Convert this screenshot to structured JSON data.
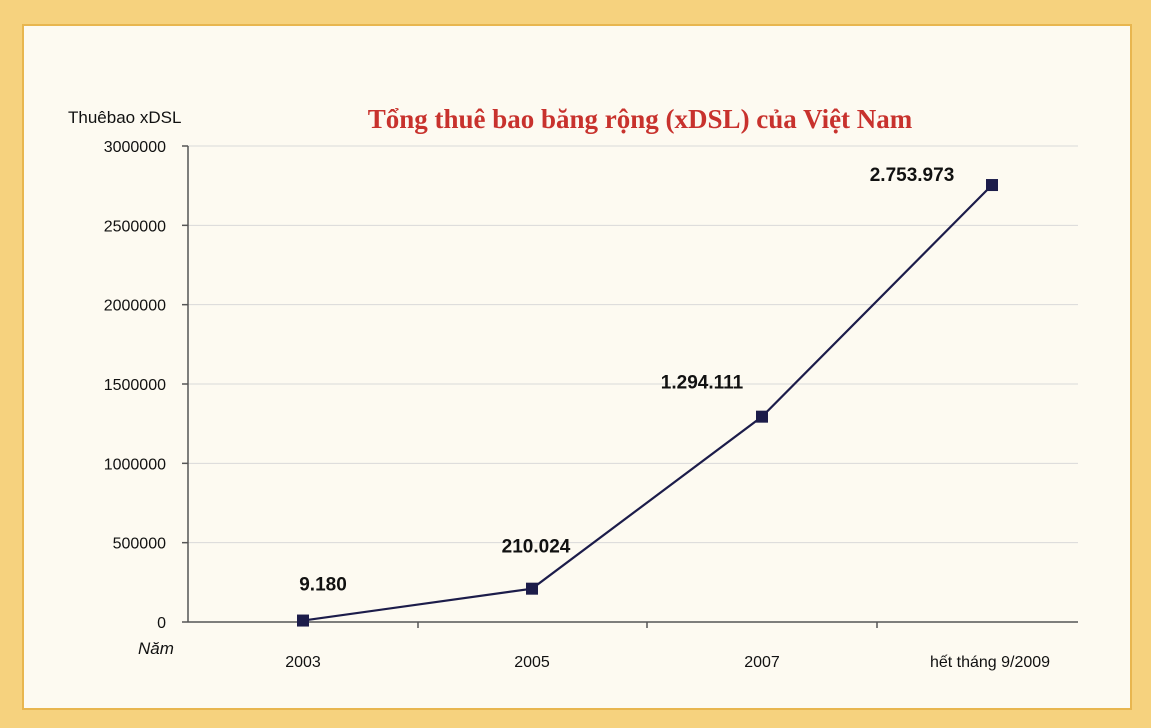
{
  "chart_data": {
    "type": "line",
    "title": "Tổng thuê bao băng rộng (xDSL) của Việt Nam",
    "ylabel": "Thuêbao xDSL",
    "xlabel": "Năm",
    "categories": [
      "2003",
      "2005",
      "2007",
      "hết tháng 9/2009"
    ],
    "values": [
      9180,
      210024,
      1294111,
      2753973
    ],
    "data_labels": [
      "9.180",
      "210.024",
      "1.294.111",
      "2.753.973"
    ],
    "ylim": [
      0,
      3000000
    ],
    "yticks": [
      0,
      500000,
      1000000,
      1500000,
      2000000,
      2500000,
      3000000
    ],
    "ytick_labels": [
      "0",
      "500000",
      "1000000",
      "1500000",
      "2000000",
      "2500000",
      "3000000"
    ],
    "grid": true,
    "line_color": "#1c1c4a",
    "marker_color": "#1c1c4a",
    "grid_color": "#d9d9d9",
    "title_color": "#c8322d"
  }
}
